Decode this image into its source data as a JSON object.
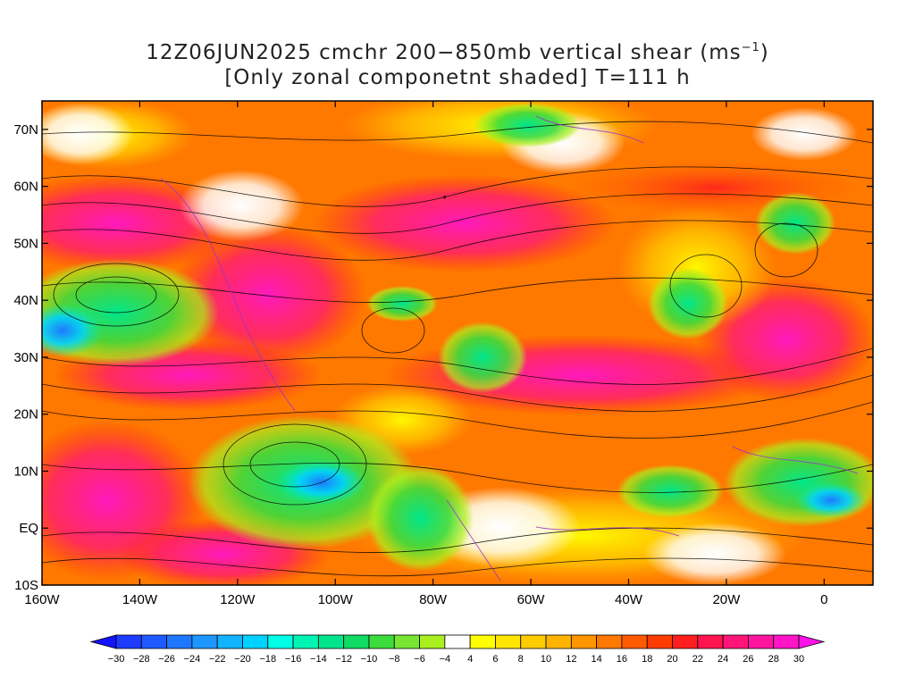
{
  "title": {
    "line1_prefix": "12Z06JUN2025 cmchr 200−850mb vertical shear (ms",
    "line1_sup": "−1",
    "line1_suffix": ")",
    "line2": "[Only zonal componetnt shaded] T=111 h"
  },
  "map": {
    "lon_range": [
      -160,
      10
    ],
    "lat_range": [
      -10,
      75
    ],
    "lat_ticks": [
      {
        "value": 70,
        "label": "70N"
      },
      {
        "value": 60,
        "label": "60N"
      },
      {
        "value": 50,
        "label": "50N"
      },
      {
        "value": 40,
        "label": "40N"
      },
      {
        "value": 30,
        "label": "30N"
      },
      {
        "value": 20,
        "label": "20N"
      },
      {
        "value": 10,
        "label": "10N"
      },
      {
        "value": 0,
        "label": "EQ"
      },
      {
        "value": -10,
        "label": "10S"
      }
    ],
    "lon_ticks": [
      {
        "value": -160,
        "label": "160W"
      },
      {
        "value": -140,
        "label": "140W"
      },
      {
        "value": -120,
        "label": "120W"
      },
      {
        "value": -100,
        "label": "100W"
      },
      {
        "value": -80,
        "label": "80W"
      },
      {
        "value": -60,
        "label": "60W"
      },
      {
        "value": -40,
        "label": "40W"
      },
      {
        "value": -20,
        "label": "20W"
      },
      {
        "value": 0,
        "label": "0"
      }
    ]
  },
  "colorbar": {
    "labels": [
      "−30",
      "−28",
      "−26",
      "−24",
      "−22",
      "−20",
      "−18",
      "−16",
      "−14",
      "−12",
      "−10",
      "−8",
      "−6",
      "−4",
      "4",
      "6",
      "8",
      "10",
      "12",
      "14",
      "16",
      "18",
      "20",
      "22",
      "24",
      "26",
      "28",
      "30"
    ],
    "colors": [
      "#1e3cff",
      "#1e5aff",
      "#1e78ff",
      "#1e96ff",
      "#12b4ff",
      "#00d2ff",
      "#00ffe6",
      "#00f5b4",
      "#00e68c",
      "#10dc64",
      "#3cdc3c",
      "#78e632",
      "#aaf01e",
      "#ffffff",
      "#ffff00",
      "#ffe600",
      "#ffcc00",
      "#ffb400",
      "#ff9600",
      "#ff7800",
      "#ff5a00",
      "#ff3c00",
      "#ff1e1e",
      "#ff1450",
      "#ff1478",
      "#ff14a0",
      "#ff14c8"
    ],
    "low_arrow_color": "#1414ff",
    "high_arrow_color": "#ff14e6"
  }
}
